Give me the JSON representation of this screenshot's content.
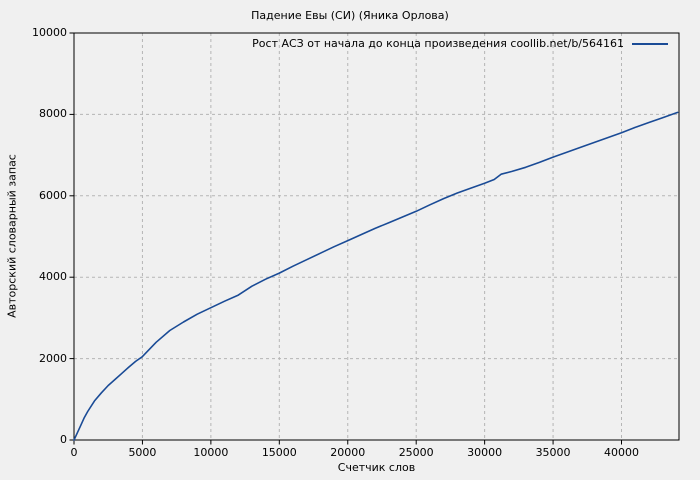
{
  "figure": {
    "title": "Падение Евы (СИ) (Яника Орлова)",
    "background_color": "#f0f0f0"
  },
  "legend": {
    "label": "Рост АСЗ от начала до конца произведения coollib.net/b/564161",
    "position": "top-right-inside"
  },
  "chart_data": {
    "type": "line",
    "title": "Падение Евы (СИ) (Яника Орлова)",
    "xlabel": "Счетчик слов",
    "ylabel": "Авторский словарный запас",
    "xlim": [
      0,
      44200
    ],
    "ylim": [
      0,
      10000
    ],
    "x_ticks": [
      0,
      5000,
      10000,
      15000,
      20000,
      25000,
      30000,
      35000,
      40000
    ],
    "y_ticks": [
      0,
      2000,
      4000,
      6000,
      8000,
      10000
    ],
    "grid": "dashed",
    "grid_color": "#b5b5b5",
    "legend_position": "top-right-inside",
    "series": [
      {
        "name": "Рост АСЗ от начала до конца произведения coollib.net/b/564161",
        "color": "#1a4b96",
        "x": [
          0,
          250,
          500,
          750,
          1000,
          1500,
          2000,
          2500,
          3000,
          3500,
          4000,
          4500,
          5000,
          6000,
          7000,
          8000,
          9000,
          10000,
          11000,
          12000,
          13000,
          14000,
          15000,
          16000,
          17000,
          18000,
          19000,
          20000,
          21000,
          22000,
          23000,
          24000,
          25000,
          26000,
          27000,
          28000,
          29000,
          30000,
          30700,
          31200,
          32000,
          33000,
          34000,
          35000,
          36000,
          37000,
          38000,
          39000,
          40000,
          41000,
          42000,
          43000,
          44100
        ],
        "y": [
          0,
          180,
          360,
          550,
          700,
          960,
          1160,
          1340,
          1490,
          1640,
          1790,
          1930,
          2050,
          2400,
          2690,
          2900,
          3090,
          3250,
          3410,
          3560,
          3780,
          3950,
          4100,
          4270,
          4430,
          4590,
          4750,
          4900,
          5050,
          5200,
          5340,
          5480,
          5620,
          5780,
          5930,
          6070,
          6190,
          6310,
          6400,
          6530,
          6600,
          6700,
          6820,
          6950,
          7070,
          7190,
          7310,
          7430,
          7550,
          7680,
          7800,
          7920,
          8050
        ]
      }
    ]
  }
}
